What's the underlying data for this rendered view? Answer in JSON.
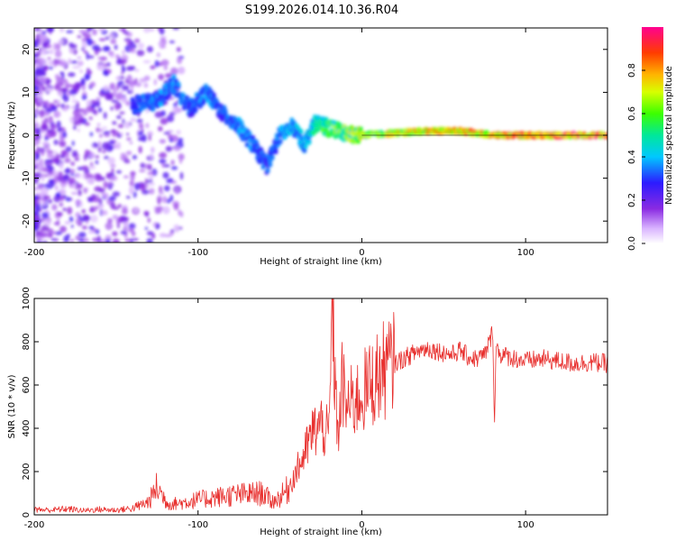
{
  "title": "S199.2026.014.10.36.R04",
  "colors": {
    "snr_line": "#e8302e",
    "ridge": "#ff1744",
    "axis": "#000000"
  },
  "chart_data": [
    {
      "type": "heatmap",
      "name": "spectrogram",
      "xlabel": "Height of straight line (km)",
      "ylabel": "Frequency (Hz)",
      "xlim": [
        -200,
        150
      ],
      "ylim": [
        -25,
        25
      ],
      "x_ticks": [
        {
          "value": -200,
          "label": "-200"
        },
        {
          "value": -100,
          "label": "-100"
        },
        {
          "value": 0,
          "label": "0"
        },
        {
          "value": 100,
          "label": "100"
        }
      ],
      "y_ticks": [
        {
          "value": -20,
          "label": "-20"
        },
        {
          "value": -10,
          "label": "-10"
        },
        {
          "value": 0,
          "label": "0"
        },
        {
          "value": 10,
          "label": "10"
        },
        {
          "value": 20,
          "label": "20"
        }
      ],
      "ridge": {
        "x": [
          -140,
          -125,
          -115,
          -105,
          -95,
          -85,
          -75,
          -65,
          -58,
          -50,
          -42,
          -35,
          -28,
          -22,
          -15,
          -5,
          0,
          20,
          40,
          60,
          80,
          100,
          120,
          150
        ],
        "freq": [
          7,
          8,
          12,
          6,
          10,
          5,
          2,
          -3,
          -7,
          0,
          2,
          -2,
          3,
          2,
          1,
          0,
          0,
          0.5,
          1,
          1,
          0,
          0,
          0,
          0
        ],
        "amplitude": [
          0.25,
          0.3,
          0.3,
          0.25,
          0.3,
          0.25,
          0.3,
          0.3,
          0.25,
          0.3,
          0.35,
          0.35,
          0.45,
          0.55,
          0.6,
          0.65,
          0.7,
          0.75,
          0.8,
          0.8,
          0.85,
          0.85,
          0.9,
          0.9
        ]
      },
      "colorbar": {
        "label": "Normalized spectral amplitude",
        "range": [
          0,
          1
        ],
        "ticks": [
          {
            "value": 0,
            "label": "0.0"
          },
          {
            "value": 0.2,
            "label": "0.2"
          },
          {
            "value": 0.4,
            "label": "0.4"
          },
          {
            "value": 0.6,
            "label": "0.6"
          },
          {
            "value": 0.8,
            "label": "0.8"
          }
        ]
      }
    },
    {
      "type": "line",
      "name": "snr",
      "xlabel": "Height of straight line (km)",
      "ylabel": "SNR (10 * v/v)",
      "xlim": [
        -200,
        150
      ],
      "ylim": [
        0,
        1000
      ],
      "x_ticks": [
        {
          "value": -200,
          "label": "-200"
        },
        {
          "value": -100,
          "label": "-100"
        },
        {
          "value": 0,
          "label": "0"
        },
        {
          "value": 100,
          "label": "100"
        }
      ],
      "y_ticks": [
        {
          "value": 0,
          "label": "0"
        },
        {
          "value": 200,
          "label": "200"
        },
        {
          "value": 400,
          "label": "400"
        },
        {
          "value": 600,
          "label": "600"
        },
        {
          "value": 800,
          "label": "800"
        },
        {
          "value": 1000,
          "label": "1000"
        }
      ],
      "series": [
        {
          "name": "SNR",
          "x": [
            -200,
            -190,
            -180,
            -170,
            -160,
            -150,
            -140,
            -130,
            -125,
            -122,
            -118,
            -110,
            -100,
            -90,
            -80,
            -70,
            -60,
            -55,
            -50,
            -45,
            -40,
            -35,
            -30,
            -25,
            -20,
            -18,
            -16,
            -14,
            -12,
            -10,
            -5,
            0,
            5,
            10,
            15,
            20,
            25,
            30,
            35,
            40,
            45,
            50,
            55,
            60,
            65,
            70,
            75,
            78,
            80,
            81,
            82,
            85,
            90,
            95,
            100,
            110,
            120,
            130,
            140,
            150
          ],
          "y": [
            25,
            22,
            28,
            20,
            25,
            22,
            30,
            60,
            130,
            90,
            50,
            55,
            70,
            80,
            90,
            95,
            100,
            60,
            80,
            120,
            200,
            280,
            380,
            420,
            360,
            980,
            520,
            380,
            620,
            500,
            520,
            560,
            600,
            640,
            680,
            700,
            720,
            740,
            760,
            770,
            760,
            750,
            740,
            760,
            730,
            720,
            740,
            800,
            850,
            420,
            780,
            740,
            730,
            720,
            710,
            720,
            710,
            700,
            705,
            700
          ]
        }
      ]
    }
  ]
}
